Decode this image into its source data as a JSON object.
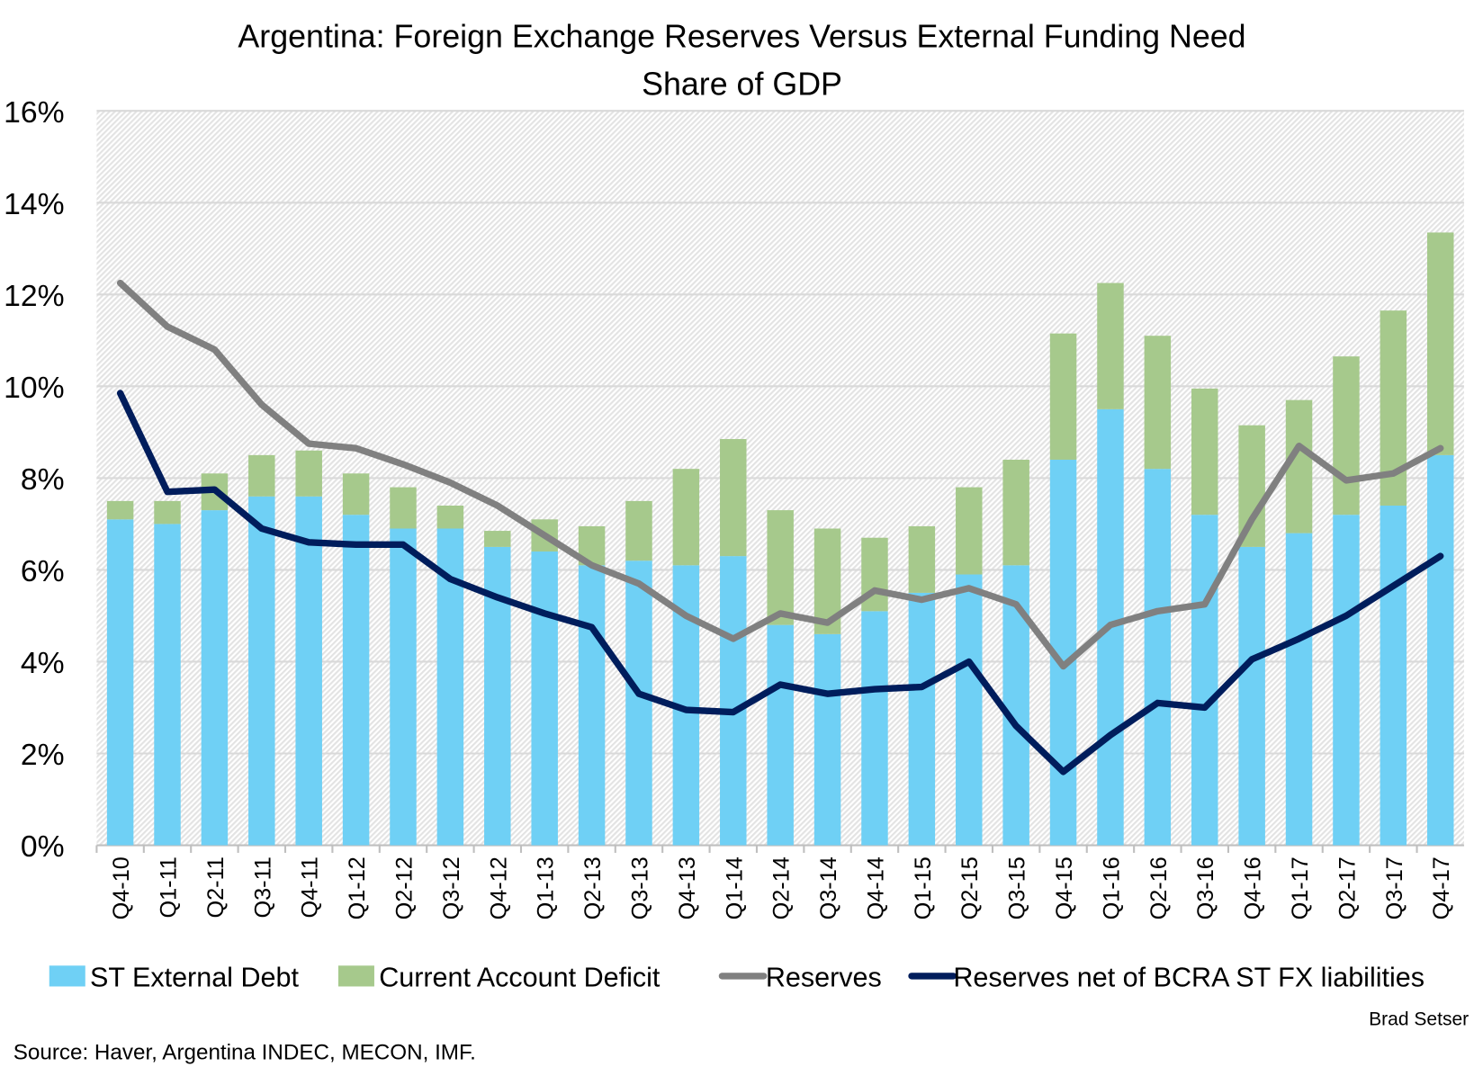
{
  "chart_data": {
    "type": "bar",
    "title": "Argentina: Foreign Exchange Reserves Versus External Funding Need",
    "subtitle": "Share of GDP",
    "xlabel": "",
    "ylabel": "",
    "ylim": [
      0,
      16
    ],
    "yticks": [
      "0%",
      "2%",
      "4%",
      "6%",
      "8%",
      "10%",
      "12%",
      "14%",
      "16%"
    ],
    "grid": true,
    "legend_position": "bottom",
    "categories": [
      "Q4-10",
      "Q1-11",
      "Q2-11",
      "Q3-11",
      "Q4-11",
      "Q1-12",
      "Q2-12",
      "Q3-12",
      "Q4-12",
      "Q1-13",
      "Q2-13",
      "Q3-13",
      "Q4-13",
      "Q1-14",
      "Q2-14",
      "Q3-14",
      "Q4-14",
      "Q1-15",
      "Q2-15",
      "Q3-15",
      "Q4-15",
      "Q1-16",
      "Q2-16",
      "Q3-16",
      "Q4-16",
      "Q1-17",
      "Q2-17",
      "Q3-17",
      "Q4-17"
    ],
    "series": [
      {
        "name": "ST External Debt",
        "kind": "stacked-bar",
        "color": "#6fd0f5",
        "values": [
          7.1,
          7.0,
          7.3,
          7.6,
          7.6,
          7.2,
          6.9,
          6.9,
          6.5,
          6.4,
          6.1,
          6.2,
          6.1,
          6.3,
          4.8,
          4.6,
          5.1,
          5.5,
          5.9,
          6.1,
          8.4,
          9.5,
          8.2,
          7.2,
          6.5,
          6.8,
          7.2,
          7.4,
          8.5
        ]
      },
      {
        "name": "Current Account Deficit",
        "kind": "stacked-bar",
        "color": "#a6c98c",
        "values": [
          0.4,
          0.5,
          0.8,
          0.9,
          1.0,
          0.9,
          0.9,
          0.5,
          0.35,
          0.7,
          0.85,
          1.3,
          2.1,
          2.55,
          2.5,
          2.3,
          1.6,
          1.45,
          1.9,
          2.3,
          2.75,
          2.75,
          2.9,
          2.75,
          2.65,
          2.9,
          3.45,
          4.25,
          4.85
        ]
      },
      {
        "name": "Reserves",
        "kind": "line",
        "color": "#808080",
        "values": [
          12.25,
          11.3,
          10.8,
          9.6,
          8.75,
          8.65,
          8.3,
          7.9,
          7.4,
          6.75,
          6.1,
          5.7,
          5.0,
          4.5,
          5.05,
          4.85,
          5.55,
          5.35,
          5.6,
          5.25,
          3.9,
          4.8,
          5.1,
          5.25,
          7.1,
          8.7,
          7.95,
          8.1,
          8.65
        ]
      },
      {
        "name": "Reserves net of BCRA ST FX liabilities",
        "kind": "line",
        "color": "#001d5c",
        "values": [
          9.85,
          7.7,
          7.75,
          6.9,
          6.6,
          6.55,
          6.55,
          5.8,
          5.4,
          5.05,
          4.75,
          3.3,
          2.95,
          2.9,
          3.5,
          3.3,
          3.4,
          3.45,
          4.0,
          2.6,
          1.6,
          2.4,
          3.1,
          3.0,
          4.05,
          4.5,
          5.0,
          5.65,
          6.3
        ]
      }
    ],
    "credit": "Brad Setser",
    "source": "Source: Haver, Argentina INDEC, MECON, IMF."
  }
}
